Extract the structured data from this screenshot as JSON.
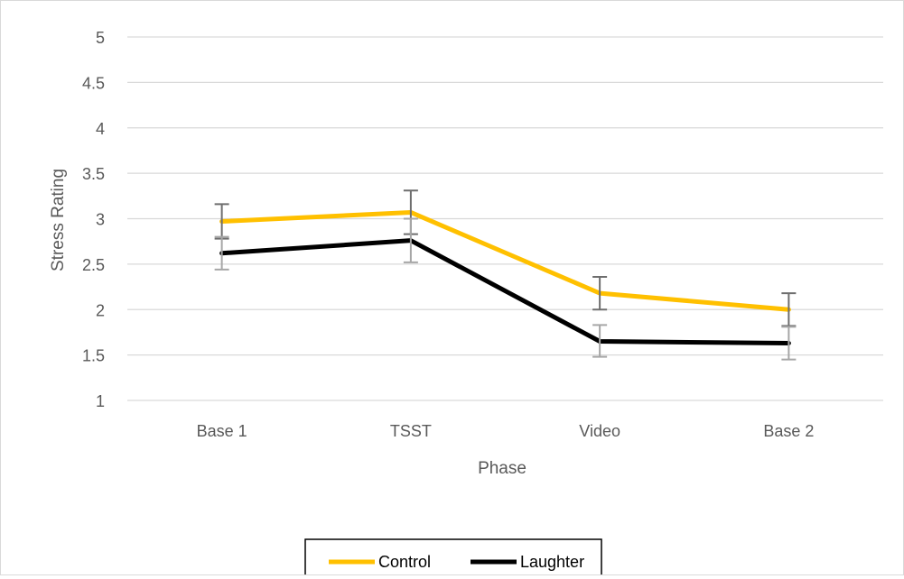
{
  "chart_data": {
    "type": "line",
    "xlabel": "Phase",
    "ylabel": "Stress Rating",
    "categories": [
      "Base 1",
      "TSST",
      "Video",
      "Base 2"
    ],
    "ylim": [
      1,
      5
    ],
    "yticks": [
      "1",
      "1.5",
      "2",
      "2.5",
      "3",
      "3.5",
      "4",
      "4.5",
      "5"
    ],
    "grid": true,
    "legend_position": "bottom",
    "series": [
      {
        "name": "Control",
        "color": "#FFC000",
        "values": [
          2.97,
          3.07,
          2.18,
          2.0
        ],
        "error_low": [
          2.78,
          2.83,
          2.0,
          1.82
        ],
        "error_high": [
          3.16,
          3.31,
          2.36,
          2.18
        ]
      },
      {
        "name": "Laughter",
        "color": "#000000",
        "values": [
          2.62,
          2.76,
          1.65,
          1.63
        ],
        "error_low": [
          2.44,
          2.52,
          1.48,
          1.45
        ],
        "error_high": [
          2.8,
          3.0,
          1.83,
          1.81
        ]
      }
    ]
  }
}
